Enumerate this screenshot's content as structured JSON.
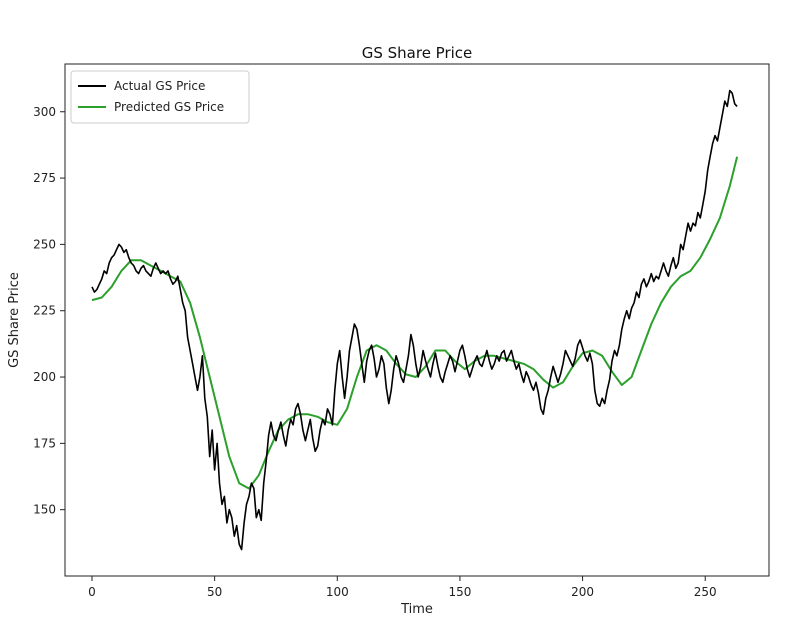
{
  "chart_data": {
    "type": "line",
    "title": "GS Share Price",
    "xlabel": "Time",
    "ylabel": "GS Share Price",
    "xlim": [
      -11,
      276
    ],
    "ylim": [
      125,
      318
    ],
    "xticks": [
      0,
      50,
      100,
      150,
      200,
      250
    ],
    "yticks": [
      150,
      175,
      200,
      225,
      250,
      275,
      300
    ],
    "grid": false,
    "legend_position": "top-left",
    "series": [
      {
        "name": "Actual GS Price",
        "color": "#000000",
        "points": [
          [
            0,
            234
          ],
          [
            1,
            232
          ],
          [
            2,
            233
          ],
          [
            3,
            235
          ],
          [
            4,
            237
          ],
          [
            5,
            240
          ],
          [
            6,
            239
          ],
          [
            7,
            243
          ],
          [
            8,
            245
          ],
          [
            9,
            246
          ],
          [
            10,
            248
          ],
          [
            11,
            250
          ],
          [
            12,
            249
          ],
          [
            13,
            247
          ],
          [
            14,
            248
          ],
          [
            15,
            245
          ],
          [
            16,
            243
          ],
          [
            17,
            242
          ],
          [
            18,
            240
          ],
          [
            19,
            239
          ],
          [
            20,
            241
          ],
          [
            21,
            242
          ],
          [
            22,
            240
          ],
          [
            23,
            239
          ],
          [
            24,
            238
          ],
          [
            25,
            241
          ],
          [
            26,
            243
          ],
          [
            27,
            241
          ],
          [
            28,
            239
          ],
          [
            29,
            240
          ],
          [
            30,
            239
          ],
          [
            31,
            240
          ],
          [
            32,
            237
          ],
          [
            33,
            235
          ],
          [
            34,
            236
          ],
          [
            35,
            238
          ],
          [
            36,
            233
          ],
          [
            37,
            228
          ],
          [
            38,
            225
          ],
          [
            39,
            215
          ],
          [
            40,
            210
          ],
          [
            41,
            205
          ],
          [
            42,
            200
          ],
          [
            43,
            195
          ],
          [
            44,
            200
          ],
          [
            45,
            208
          ],
          [
            46,
            192
          ],
          [
            47,
            185
          ],
          [
            48,
            170
          ],
          [
            49,
            180
          ],
          [
            50,
            165
          ],
          [
            51,
            175
          ],
          [
            52,
            160
          ],
          [
            53,
            152
          ],
          [
            54,
            155
          ],
          [
            55,
            145
          ],
          [
            56,
            150
          ],
          [
            57,
            147
          ],
          [
            58,
            140
          ],
          [
            59,
            144
          ],
          [
            60,
            137
          ],
          [
            61,
            135
          ],
          [
            62,
            145
          ],
          [
            63,
            152
          ],
          [
            64,
            155
          ],
          [
            65,
            160
          ],
          [
            66,
            158
          ],
          [
            67,
            147
          ],
          [
            68,
            150
          ],
          [
            69,
            146
          ],
          [
            70,
            160
          ],
          [
            71,
            168
          ],
          [
            72,
            178
          ],
          [
            73,
            183
          ],
          [
            74,
            178
          ],
          [
            75,
            176
          ],
          [
            76,
            180
          ],
          [
            77,
            183
          ],
          [
            78,
            178
          ],
          [
            79,
            174
          ],
          [
            80,
            180
          ],
          [
            81,
            184
          ],
          [
            82,
            182
          ],
          [
            83,
            188
          ],
          [
            84,
            190
          ],
          [
            85,
            186
          ],
          [
            86,
            180
          ],
          [
            87,
            176
          ],
          [
            88,
            180
          ],
          [
            89,
            184
          ],
          [
            90,
            177
          ],
          [
            91,
            172
          ],
          [
            92,
            174
          ],
          [
            93,
            180
          ],
          [
            94,
            184
          ],
          [
            95,
            182
          ],
          [
            96,
            188
          ],
          [
            97,
            186
          ],
          [
            98,
            182
          ],
          [
            99,
            195
          ],
          [
            100,
            205
          ],
          [
            101,
            210
          ],
          [
            102,
            200
          ],
          [
            103,
            192
          ],
          [
            104,
            200
          ],
          [
            105,
            210
          ],
          [
            106,
            215
          ],
          [
            107,
            220
          ],
          [
            108,
            218
          ],
          [
            109,
            212
          ],
          [
            110,
            205
          ],
          [
            111,
            198
          ],
          [
            112,
            206
          ],
          [
            113,
            210
          ],
          [
            114,
            212
          ],
          [
            115,
            207
          ],
          [
            116,
            200
          ],
          [
            117,
            203
          ],
          [
            118,
            208
          ],
          [
            119,
            205
          ],
          [
            120,
            196
          ],
          [
            121,
            190
          ],
          [
            122,
            195
          ],
          [
            123,
            203
          ],
          [
            124,
            208
          ],
          [
            125,
            205
          ],
          [
            126,
            200
          ],
          [
            127,
            198
          ],
          [
            128,
            203
          ],
          [
            129,
            208
          ],
          [
            130,
            216
          ],
          [
            131,
            212
          ],
          [
            132,
            205
          ],
          [
            133,
            200
          ],
          [
            134,
            204
          ],
          [
            135,
            210
          ],
          [
            136,
            206
          ],
          [
            137,
            203
          ],
          [
            138,
            200
          ],
          [
            139,
            205
          ],
          [
            140,
            209
          ],
          [
            141,
            204
          ],
          [
            142,
            200
          ],
          [
            143,
            198
          ],
          [
            144,
            202
          ],
          [
            145,
            205
          ],
          [
            146,
            208
          ],
          [
            147,
            206
          ],
          [
            148,
            202
          ],
          [
            149,
            206
          ],
          [
            150,
            210
          ],
          [
            151,
            212
          ],
          [
            152,
            208
          ],
          [
            153,
            203
          ],
          [
            154,
            200
          ],
          [
            155,
            203
          ],
          [
            156,
            206
          ],
          [
            157,
            208
          ],
          [
            158,
            205
          ],
          [
            159,
            204
          ],
          [
            160,
            207
          ],
          [
            161,
            210
          ],
          [
            162,
            206
          ],
          [
            163,
            203
          ],
          [
            164,
            205
          ],
          [
            165,
            208
          ],
          [
            166,
            206
          ],
          [
            167,
            209
          ],
          [
            168,
            210
          ],
          [
            169,
            206
          ],
          [
            170,
            208
          ],
          [
            171,
            210
          ],
          [
            172,
            206
          ],
          [
            173,
            203
          ],
          [
            174,
            205
          ],
          [
            175,
            201
          ],
          [
            176,
            198
          ],
          [
            177,
            202
          ],
          [
            178,
            200
          ],
          [
            179,
            197
          ],
          [
            180,
            195
          ],
          [
            181,
            198
          ],
          [
            182,
            194
          ],
          [
            183,
            188
          ],
          [
            184,
            186
          ],
          [
            185,
            192
          ],
          [
            186,
            195
          ],
          [
            187,
            200
          ],
          [
            188,
            204
          ],
          [
            189,
            201
          ],
          [
            190,
            198
          ],
          [
            191,
            201
          ],
          [
            192,
            205
          ],
          [
            193,
            210
          ],
          [
            194,
            208
          ],
          [
            195,
            206
          ],
          [
            196,
            204
          ],
          [
            197,
            207
          ],
          [
            198,
            212
          ],
          [
            199,
            214
          ],
          [
            200,
            211
          ],
          [
            201,
            208
          ],
          [
            202,
            206
          ],
          [
            203,
            209
          ],
          [
            204,
            205
          ],
          [
            205,
            195
          ],
          [
            206,
            190
          ],
          [
            207,
            189
          ],
          [
            208,
            192
          ],
          [
            209,
            190
          ],
          [
            210,
            195
          ],
          [
            211,
            199
          ],
          [
            212,
            206
          ],
          [
            213,
            210
          ],
          [
            214,
            208
          ],
          [
            215,
            212
          ],
          [
            216,
            218
          ],
          [
            217,
            222
          ],
          [
            218,
            225
          ],
          [
            219,
            222
          ],
          [
            220,
            226
          ],
          [
            221,
            228
          ],
          [
            222,
            232
          ],
          [
            223,
            230
          ],
          [
            224,
            235
          ],
          [
            225,
            237
          ],
          [
            226,
            234
          ],
          [
            227,
            236
          ],
          [
            228,
            239
          ],
          [
            229,
            236
          ],
          [
            230,
            238
          ],
          [
            231,
            237
          ],
          [
            232,
            240
          ],
          [
            233,
            243
          ],
          [
            234,
            240
          ],
          [
            235,
            238
          ],
          [
            236,
            242
          ],
          [
            237,
            245
          ],
          [
            238,
            241
          ],
          [
            239,
            243
          ],
          [
            240,
            250
          ],
          [
            241,
            248
          ],
          [
            242,
            253
          ],
          [
            243,
            258
          ],
          [
            244,
            255
          ],
          [
            245,
            258
          ],
          [
            246,
            257
          ],
          [
            247,
            262
          ],
          [
            248,
            260
          ],
          [
            249,
            265
          ],
          [
            250,
            270
          ],
          [
            251,
            278
          ],
          [
            252,
            283
          ],
          [
            253,
            288
          ],
          [
            254,
            291
          ],
          [
            255,
            289
          ],
          [
            256,
            294
          ],
          [
            257,
            299
          ],
          [
            258,
            304
          ],
          [
            259,
            302
          ],
          [
            260,
            308
          ],
          [
            261,
            307
          ],
          [
            262,
            303
          ],
          [
            263,
            302
          ]
        ]
      },
      {
        "name": "Predicted GS Price",
        "color": "#2ca02c",
        "points": [
          [
            0,
            229
          ],
          [
            4,
            230
          ],
          [
            8,
            234
          ],
          [
            12,
            240
          ],
          [
            16,
            244
          ],
          [
            20,
            244
          ],
          [
            24,
            242
          ],
          [
            28,
            240
          ],
          [
            32,
            238
          ],
          [
            36,
            236
          ],
          [
            40,
            228
          ],
          [
            44,
            215
          ],
          [
            48,
            200
          ],
          [
            52,
            185
          ],
          [
            56,
            170
          ],
          [
            60,
            160
          ],
          [
            64,
            158
          ],
          [
            68,
            163
          ],
          [
            72,
            172
          ],
          [
            76,
            180
          ],
          [
            80,
            184
          ],
          [
            84,
            186
          ],
          [
            88,
            186
          ],
          [
            92,
            185
          ],
          [
            96,
            183
          ],
          [
            100,
            182
          ],
          [
            104,
            188
          ],
          [
            108,
            200
          ],
          [
            112,
            210
          ],
          [
            116,
            212
          ],
          [
            120,
            210
          ],
          [
            124,
            205
          ],
          [
            128,
            201
          ],
          [
            132,
            200
          ],
          [
            136,
            204
          ],
          [
            140,
            210
          ],
          [
            144,
            210
          ],
          [
            148,
            206
          ],
          [
            152,
            203
          ],
          [
            156,
            206
          ],
          [
            160,
            208
          ],
          [
            164,
            208
          ],
          [
            168,
            207
          ],
          [
            172,
            206
          ],
          [
            176,
            205
          ],
          [
            180,
            203
          ],
          [
            184,
            199
          ],
          [
            188,
            196
          ],
          [
            192,
            198
          ],
          [
            196,
            204
          ],
          [
            200,
            209
          ],
          [
            204,
            210
          ],
          [
            208,
            208
          ],
          [
            212,
            202
          ],
          [
            216,
            197
          ],
          [
            220,
            200
          ],
          [
            224,
            210
          ],
          [
            228,
            220
          ],
          [
            232,
            228
          ],
          [
            236,
            234
          ],
          [
            240,
            238
          ],
          [
            244,
            240
          ],
          [
            248,
            245
          ],
          [
            252,
            252
          ],
          [
            256,
            260
          ],
          [
            260,
            272
          ],
          [
            263,
            283
          ]
        ]
      }
    ]
  }
}
